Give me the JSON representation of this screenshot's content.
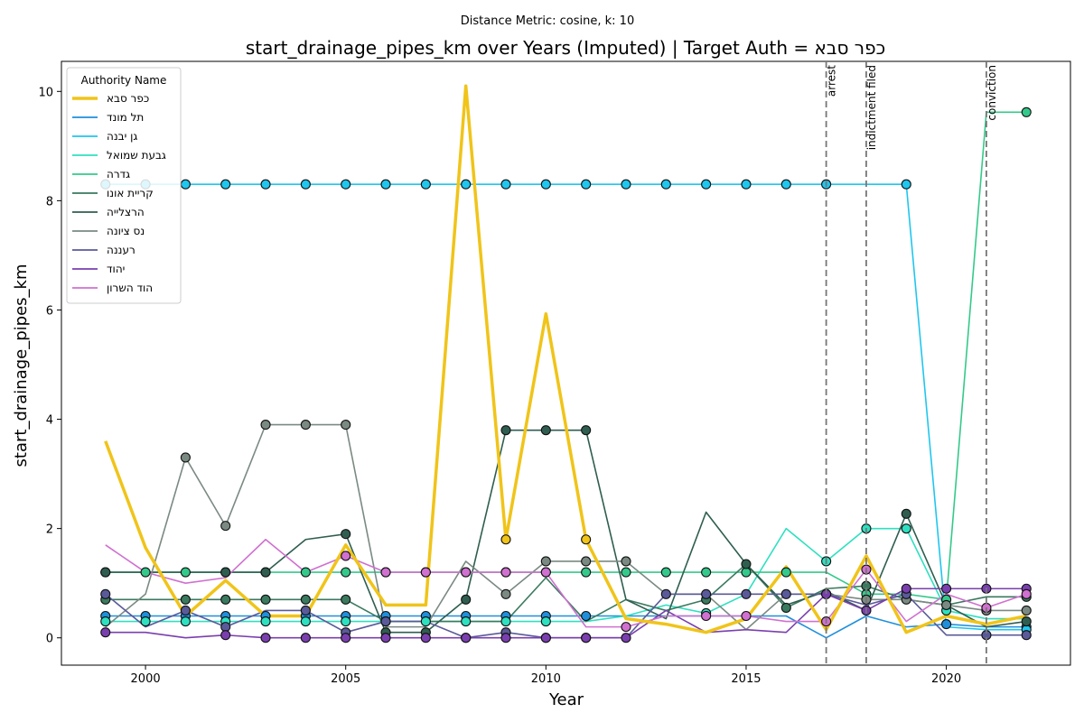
{
  "chart_data": {
    "type": "line",
    "suptitle": "Distance Metric: cosine, k: 10",
    "title": "start_drainage_pipes_km over Years (Imputed) | Target Auth = כפר סבא",
    "xlabel": "Year",
    "ylabel": "start_drainage_pipes_km",
    "xlim": [
      1997.9,
      2023.1
    ],
    "ylim": [
      -0.5,
      10.55
    ],
    "xticks": [
      2000,
      2005,
      2010,
      2015,
      2020
    ],
    "yticks": [
      0,
      2,
      4,
      6,
      8,
      10
    ],
    "grid": false,
    "legend": {
      "title": "Authority Name",
      "placement": "top-left"
    },
    "years": [
      1999,
      2000,
      2001,
      2002,
      2003,
      2004,
      2005,
      2006,
      2007,
      2008,
      2009,
      2010,
      2011,
      2012,
      2013,
      2014,
      2015,
      2016,
      2017,
      2018,
      2019,
      2020,
      2021,
      2022
    ],
    "events": [
      {
        "x": 2017,
        "label": "arrest"
      },
      {
        "x": 2018,
        "label": "indictment filed"
      },
      {
        "x": 2021,
        "label": "conviction"
      }
    ],
    "series": [
      {
        "name": "כפר סבא",
        "color": "#f0c419",
        "target": true,
        "values": [
          3.6,
          1.65,
          0.4,
          1.05,
          0.4,
          0.4,
          1.7,
          0.6,
          0.6,
          10.1,
          1.8,
          5.93,
          1.8,
          0.35,
          0.25,
          0.1,
          0.35,
          1.3,
          0.15,
          1.5,
          0.1,
          0.4,
          0.25,
          0.4
        ],
        "markers": [
          10,
          12
        ]
      },
      {
        "name": "תל מונד",
        "color": "#1f8fdc",
        "values": [
          0.4,
          0.4,
          0.4,
          0.4,
          0.4,
          0.4,
          0.4,
          0.4,
          0.4,
          0.4,
          0.4,
          0.4,
          0.4,
          0.4,
          0.4,
          0.4,
          0.4,
          0.4,
          0.0,
          0.4,
          0.2,
          0.25,
          0.2,
          0.2
        ],
        "markers": [
          0,
          1,
          2,
          3,
          4,
          5,
          6,
          7,
          8,
          9,
          10,
          11,
          12,
          21,
          23
        ]
      },
      {
        "name": "גן יבנה",
        "color": "#1fc6ee",
        "values": [
          8.3,
          8.3,
          8.3,
          8.3,
          8.3,
          8.3,
          8.3,
          8.3,
          8.3,
          8.3,
          8.3,
          8.3,
          8.3,
          8.3,
          8.3,
          8.3,
          8.3,
          8.3,
          8.3,
          8.3,
          8.3,
          0.2,
          0.15,
          0.15
        ],
        "markers": [
          0,
          1,
          2,
          3,
          4,
          5,
          6,
          7,
          8,
          9,
          10,
          11,
          12,
          13,
          14,
          15,
          16,
          17,
          18,
          20,
          23
        ]
      },
      {
        "name": "גבעת שמואל",
        "color": "#2ee0c0",
        "values": [
          0.3,
          0.3,
          0.3,
          0.3,
          0.3,
          0.3,
          0.3,
          0.3,
          0.3,
          0.3,
          0.3,
          0.3,
          0.3,
          0.4,
          0.6,
          0.45,
          0.8,
          2.0,
          1.4,
          2.0,
          2.0,
          0.5,
          0.35,
          0.35
        ],
        "markers": [
          0,
          1,
          2,
          3,
          4,
          5,
          6,
          7,
          8,
          9,
          10,
          11,
          15,
          18,
          19,
          20,
          21
        ]
      },
      {
        "name": "גדרה",
        "color": "#34c98a",
        "values": [
          1.2,
          1.2,
          1.2,
          1.2,
          1.2,
          1.2,
          1.2,
          1.2,
          1.2,
          1.2,
          1.2,
          1.2,
          1.2,
          1.2,
          1.2,
          1.2,
          1.2,
          1.2,
          1.2,
          0.8,
          0.8,
          0.7,
          9.62,
          9.62
        ],
        "markers": [
          0,
          1,
          2,
          3,
          4,
          5,
          6,
          7,
          8,
          9,
          10,
          11,
          12,
          13,
          14,
          15,
          16,
          17,
          19,
          21,
          23
        ]
      },
      {
        "name": "קריית אונו",
        "color": "#3a7a5f",
        "values": [
          0.7,
          0.7,
          0.7,
          0.7,
          0.7,
          0.7,
          0.7,
          0.3,
          0.3,
          0.3,
          0.3,
          1.1,
          0.3,
          0.7,
          0.5,
          0.7,
          1.35,
          0.55,
          0.9,
          0.95,
          0.7,
          0.6,
          0.75,
          0.75
        ],
        "markers": [
          0,
          2,
          3,
          4,
          5,
          6,
          15,
          17,
          19,
          23
        ]
      },
      {
        "name": "הרצלייה",
        "color": "#2f5e50",
        "values": [
          1.2,
          1.2,
          1.2,
          1.2,
          1.2,
          1.8,
          1.9,
          0.1,
          0.1,
          0.7,
          3.8,
          3.8,
          3.8,
          0.7,
          0.35,
          2.3,
          1.35,
          0.6,
          0.85,
          0.5,
          2.27,
          0.6,
          0.2,
          0.3
        ],
        "markers": [
          0,
          3,
          4,
          6,
          7,
          8,
          9,
          10,
          11,
          12,
          16,
          20,
          23
        ]
      },
      {
        "name": "נס ציונה",
        "color": "#7a8a82",
        "values": [
          0.2,
          0.8,
          3.3,
          2.05,
          3.9,
          3.9,
          3.9,
          0.2,
          0.2,
          1.4,
          0.8,
          1.4,
          1.4,
          1.4,
          0.8,
          0.8,
          0.15,
          0.8,
          0.8,
          0.7,
          0.7,
          0.6,
          0.5,
          0.5
        ],
        "markers": [
          2,
          3,
          4,
          5,
          6,
          10,
          11,
          12,
          13,
          18,
          19,
          20,
          21,
          22,
          23
        ]
      },
      {
        "name": "רעננה",
        "color": "#5a5a9a",
        "values": [
          0.8,
          0.2,
          0.5,
          0.2,
          0.5,
          0.5,
          0.1,
          0.3,
          0.3,
          0.0,
          0.1,
          0.0,
          0.0,
          0.0,
          0.8,
          0.8,
          0.8,
          0.8,
          0.8,
          0.6,
          0.8,
          0.05,
          0.05,
          0.05
        ],
        "markers": [
          0,
          2,
          3,
          5,
          6,
          7,
          9,
          10,
          11,
          12,
          14,
          15,
          16,
          17,
          18,
          20,
          22,
          23
        ]
      },
      {
        "name": "יהוד",
        "color": "#7a3faf",
        "values": [
          0.1,
          0.1,
          0.0,
          0.05,
          0.0,
          0.0,
          0.0,
          0.0,
          0.0,
          0.0,
          0.0,
          0.0,
          0.0,
          0.0,
          0.5,
          0.1,
          0.15,
          0.1,
          0.8,
          0.5,
          0.9,
          0.9,
          0.9,
          0.9
        ],
        "markers": [
          0,
          3,
          4,
          5,
          6,
          7,
          8,
          9,
          10,
          11,
          12,
          13,
          18,
          19,
          20,
          21,
          22,
          23
        ]
      },
      {
        "name": "הוד השרון",
        "color": "#d070d0",
        "values": [
          1.7,
          1.2,
          1.0,
          1.1,
          1.8,
          1.2,
          1.5,
          1.2,
          1.2,
          1.2,
          1.2,
          1.2,
          0.2,
          0.2,
          0.4,
          0.4,
          0.4,
          0.3,
          0.3,
          1.25,
          0.3,
          0.8,
          0.55,
          0.8
        ],
        "markers": [
          6,
          7,
          8,
          9,
          10,
          11,
          13,
          15,
          16,
          18,
          19,
          22,
          23
        ]
      }
    ]
  }
}
